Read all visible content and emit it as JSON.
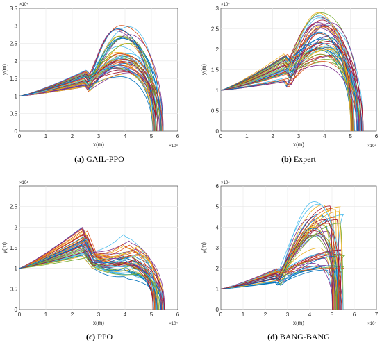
{
  "chart_data": [
    {
      "type": "line",
      "caption_label": "(a)",
      "caption_text": "GAIL-PPO",
      "xlabel": "x(m)",
      "ylabel": "y(m)",
      "x_exponent": "×10⁴",
      "y_exponent": "×10⁴",
      "xlim": [
        0,
        6
      ],
      "ylim": [
        0,
        3.5
      ],
      "xticks": [
        "0",
        "1",
        "2",
        "3",
        "4",
        "5",
        "6"
      ],
      "yticks": [
        "0",
        "0.5",
        "1",
        "1.5",
        "2",
        "2.5",
        "3",
        "3.5"
      ],
      "grid": true,
      "series_count": 50,
      "trajectory_family": {
        "start": [
          0,
          1.0
        ],
        "knee_x": [
          2.45,
          2.55
        ],
        "knee_y": [
          1.25,
          1.75
        ],
        "apex_x": [
          3.6,
          4.2
        ],
        "apex_y": [
          1.45,
          3.05
        ],
        "end_x": [
          5.05,
          5.45
        ]
      }
    },
    {
      "type": "line",
      "caption_label": "(b)",
      "caption_text": "Expert",
      "xlabel": "x(m)",
      "ylabel": "y(m)",
      "x_exponent": "×10⁴",
      "y_exponent": "×10⁴",
      "xlim": [
        0,
        6
      ],
      "ylim": [
        0,
        3
      ],
      "xticks": [
        "0",
        "1",
        "2",
        "3",
        "4",
        "5",
        "6"
      ],
      "yticks": [
        "0",
        "0.5",
        "1",
        "1.5",
        "2",
        "2.5",
        "3"
      ],
      "grid": true,
      "series_count": 50,
      "trajectory_family": {
        "start": [
          0,
          1.0
        ],
        "knee_x": [
          2.4,
          2.6
        ],
        "knee_y": [
          1.2,
          1.9
        ],
        "apex_x": [
          3.7,
          4.3
        ],
        "apex_y": [
          1.6,
          2.9
        ],
        "end_x": [
          5.0,
          5.5
        ]
      }
    },
    {
      "type": "line",
      "caption_label": "(c)",
      "caption_text": "PPO",
      "xlabel": "x(m)",
      "ylabel": "y(m)",
      "x_exponent": "×10⁴",
      "y_exponent": "×10⁴",
      "xlim": [
        0,
        6
      ],
      "ylim": [
        0,
        3
      ],
      "xticks": [
        "0",
        "1",
        "2",
        "3",
        "4",
        "5",
        "6"
      ],
      "yticks": [
        "0",
        "0.5",
        "1",
        "1.5",
        "2",
        "2.5"
      ],
      "grid": true,
      "series_count": 50,
      "trajectory_family": {
        "start": [
          0,
          1.0
        ],
        "peak_x": [
          2.35,
          2.6
        ],
        "peak_y": [
          1.25,
          2.0
        ],
        "shoulder_x": [
          3.9,
          4.6
        ],
        "shoulder_y": [
          0.85,
          1.45
        ],
        "end_x": [
          5.05,
          5.5
        ]
      }
    },
    {
      "type": "line",
      "caption_label": "(d)",
      "caption_text": "BANG-BANG",
      "xlabel": "x(m)",
      "ylabel": "y(m)",
      "x_exponent": "×10⁴",
      "y_exponent": "×10⁴",
      "xlim": [
        0,
        7
      ],
      "ylim": [
        0,
        6
      ],
      "xticks": [
        "0",
        "1",
        "2",
        "3",
        "4",
        "5",
        "6",
        "7"
      ],
      "yticks": [
        "0",
        "1",
        "2",
        "3",
        "4",
        "5",
        "6"
      ],
      "grid": true,
      "series_count": 50,
      "trajectory_family": {
        "start": [
          0,
          1.0
        ],
        "knee_x": [
          2.4,
          2.6
        ],
        "knee_y": [
          1.3,
          2.0
        ],
        "apex_x": [
          4.0,
          5.6
        ],
        "apex_y": [
          1.5,
          5.3
        ],
        "end_x": [
          5.0,
          5.5
        ]
      }
    }
  ],
  "palette": [
    "#0072BD",
    "#D95319",
    "#EDB120",
    "#7E2F8E",
    "#77AC30",
    "#4DBEEE",
    "#A2142F"
  ]
}
